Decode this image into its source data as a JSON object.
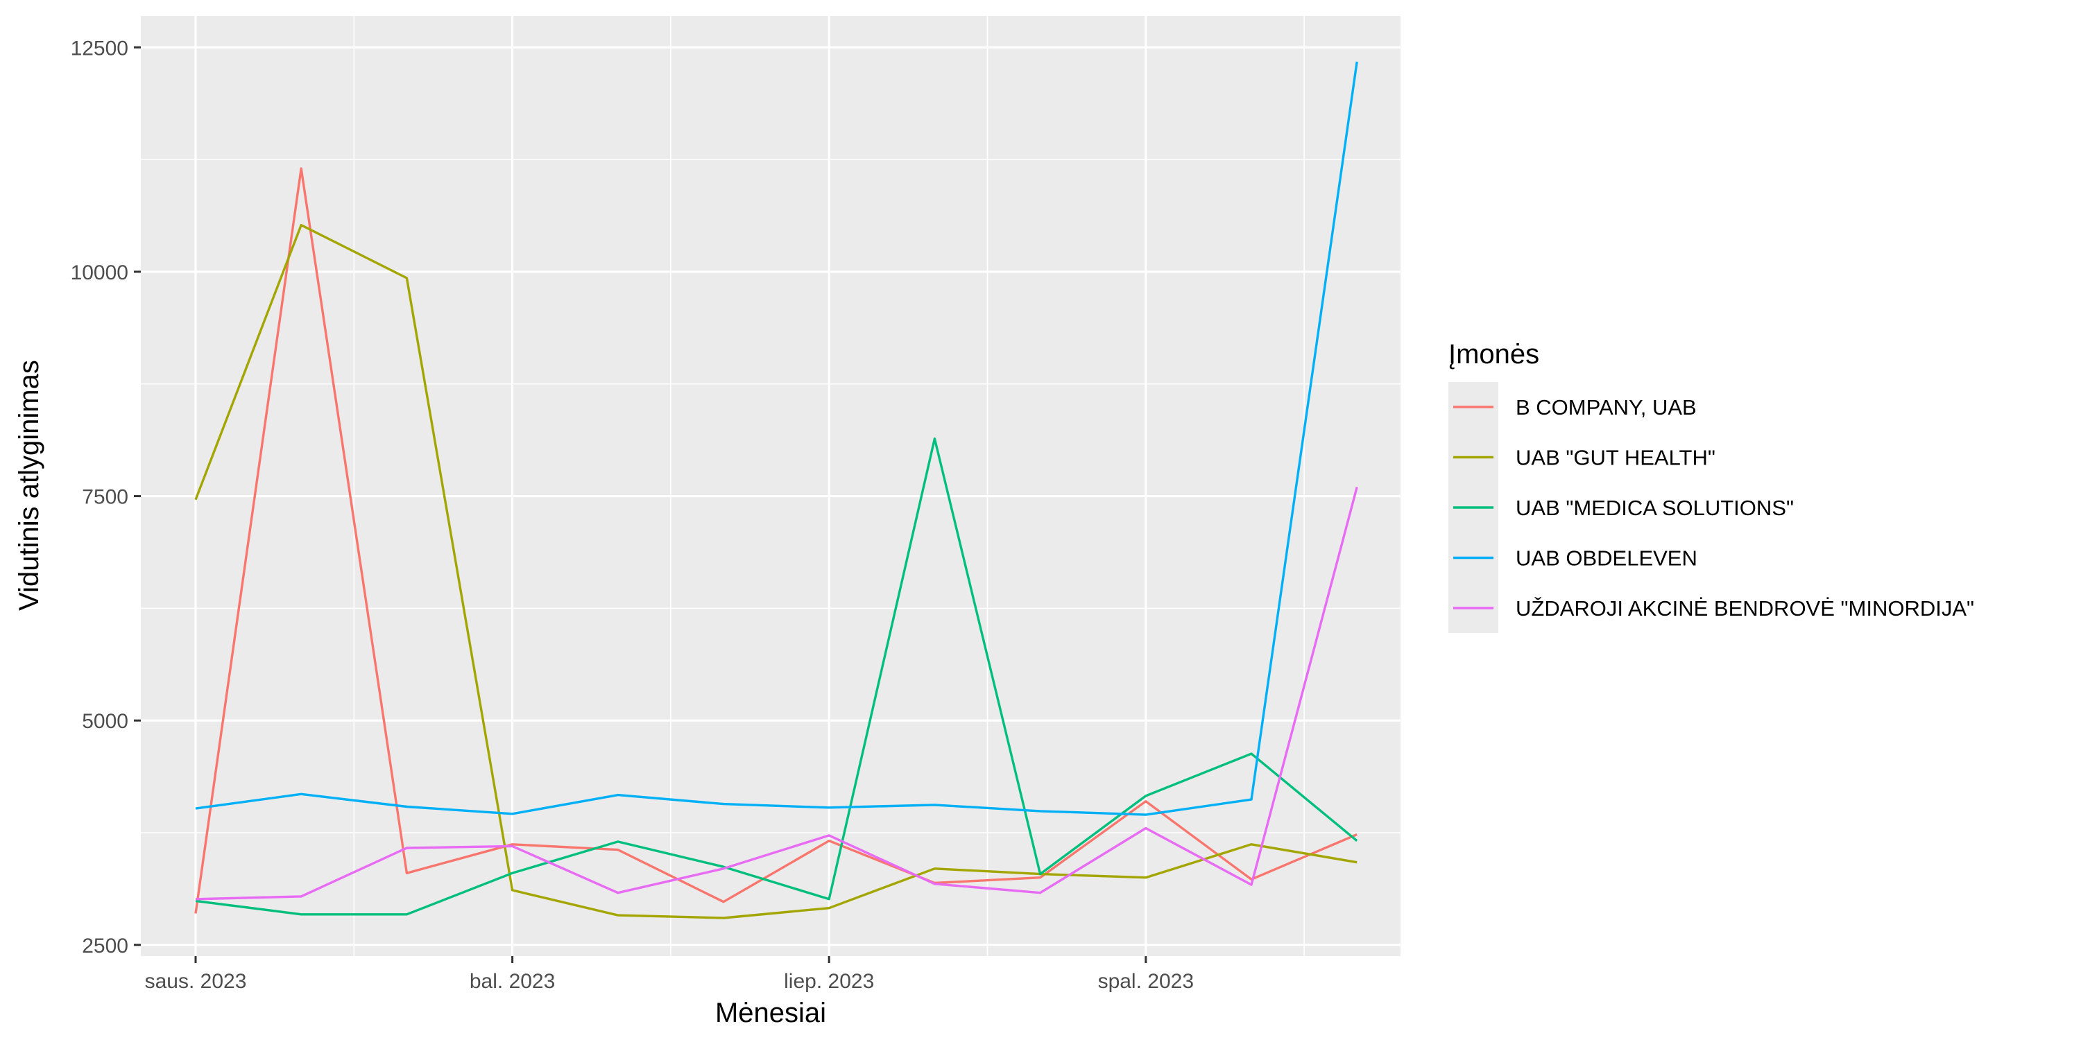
{
  "chart_data": {
    "type": "line",
    "xlabel": "Mėnesiai",
    "ylabel": "Vidutinis atlyginimas",
    "x": [
      "2023-01",
      "2023-02",
      "2023-03",
      "2023-04",
      "2023-05",
      "2023-06",
      "2023-07",
      "2023-08",
      "2023-09",
      "2023-10",
      "2023-11",
      "2023-12"
    ],
    "xticks": [
      {
        "x": "2023-01",
        "label": "saus. 2023"
      },
      {
        "x": "2023-04",
        "label": "bal. 2023"
      },
      {
        "x": "2023-07",
        "label": "liep. 2023"
      },
      {
        "x": "2023-10",
        "label": "spal. 2023"
      }
    ],
    "yticks": [
      2500,
      5000,
      7500,
      10000,
      12500
    ],
    "ylim": [
      2375,
      12850
    ],
    "grid": true,
    "legend": {
      "title": "Įmonės",
      "placement": "right"
    },
    "series": [
      {
        "name": "B COMPANY, UAB",
        "color": "#F8766D",
        "values": [
          2850,
          11150,
          3300,
          3620,
          3560,
          2980,
          3660,
          3190,
          3250,
          4100,
          3230,
          3730
        ]
      },
      {
        "name": "UAB \"GUT HEALTH\"",
        "color": "#A3A500",
        "values": [
          7460,
          10520,
          9930,
          3110,
          2830,
          2800,
          2910,
          3350,
          3290,
          3250,
          3620,
          3420
        ]
      },
      {
        "name": "UAB \"MEDICA SOLUTIONS\"",
        "color": "#00BF7D",
        "values": [
          2990,
          2840,
          2840,
          3300,
          3650,
          3370,
          3010,
          8140,
          3290,
          4160,
          4630,
          3660
        ]
      },
      {
        "name": "UAB OBDELEVEN",
        "color": "#00B0F6",
        "values": [
          4020,
          4180,
          4040,
          3960,
          4170,
          4070,
          4030,
          4060,
          3990,
          3950,
          4120,
          12340
        ]
      },
      {
        "name": "UŽDAROJI AKCINĖ BENDROVĖ \"MINORDIJA\"",
        "color": "#E76BF3",
        "values": [
          3010,
          3040,
          3580,
          3600,
          3080,
          3350,
          3720,
          3180,
          3080,
          3800,
          3170,
          7600
        ]
      }
    ]
  }
}
